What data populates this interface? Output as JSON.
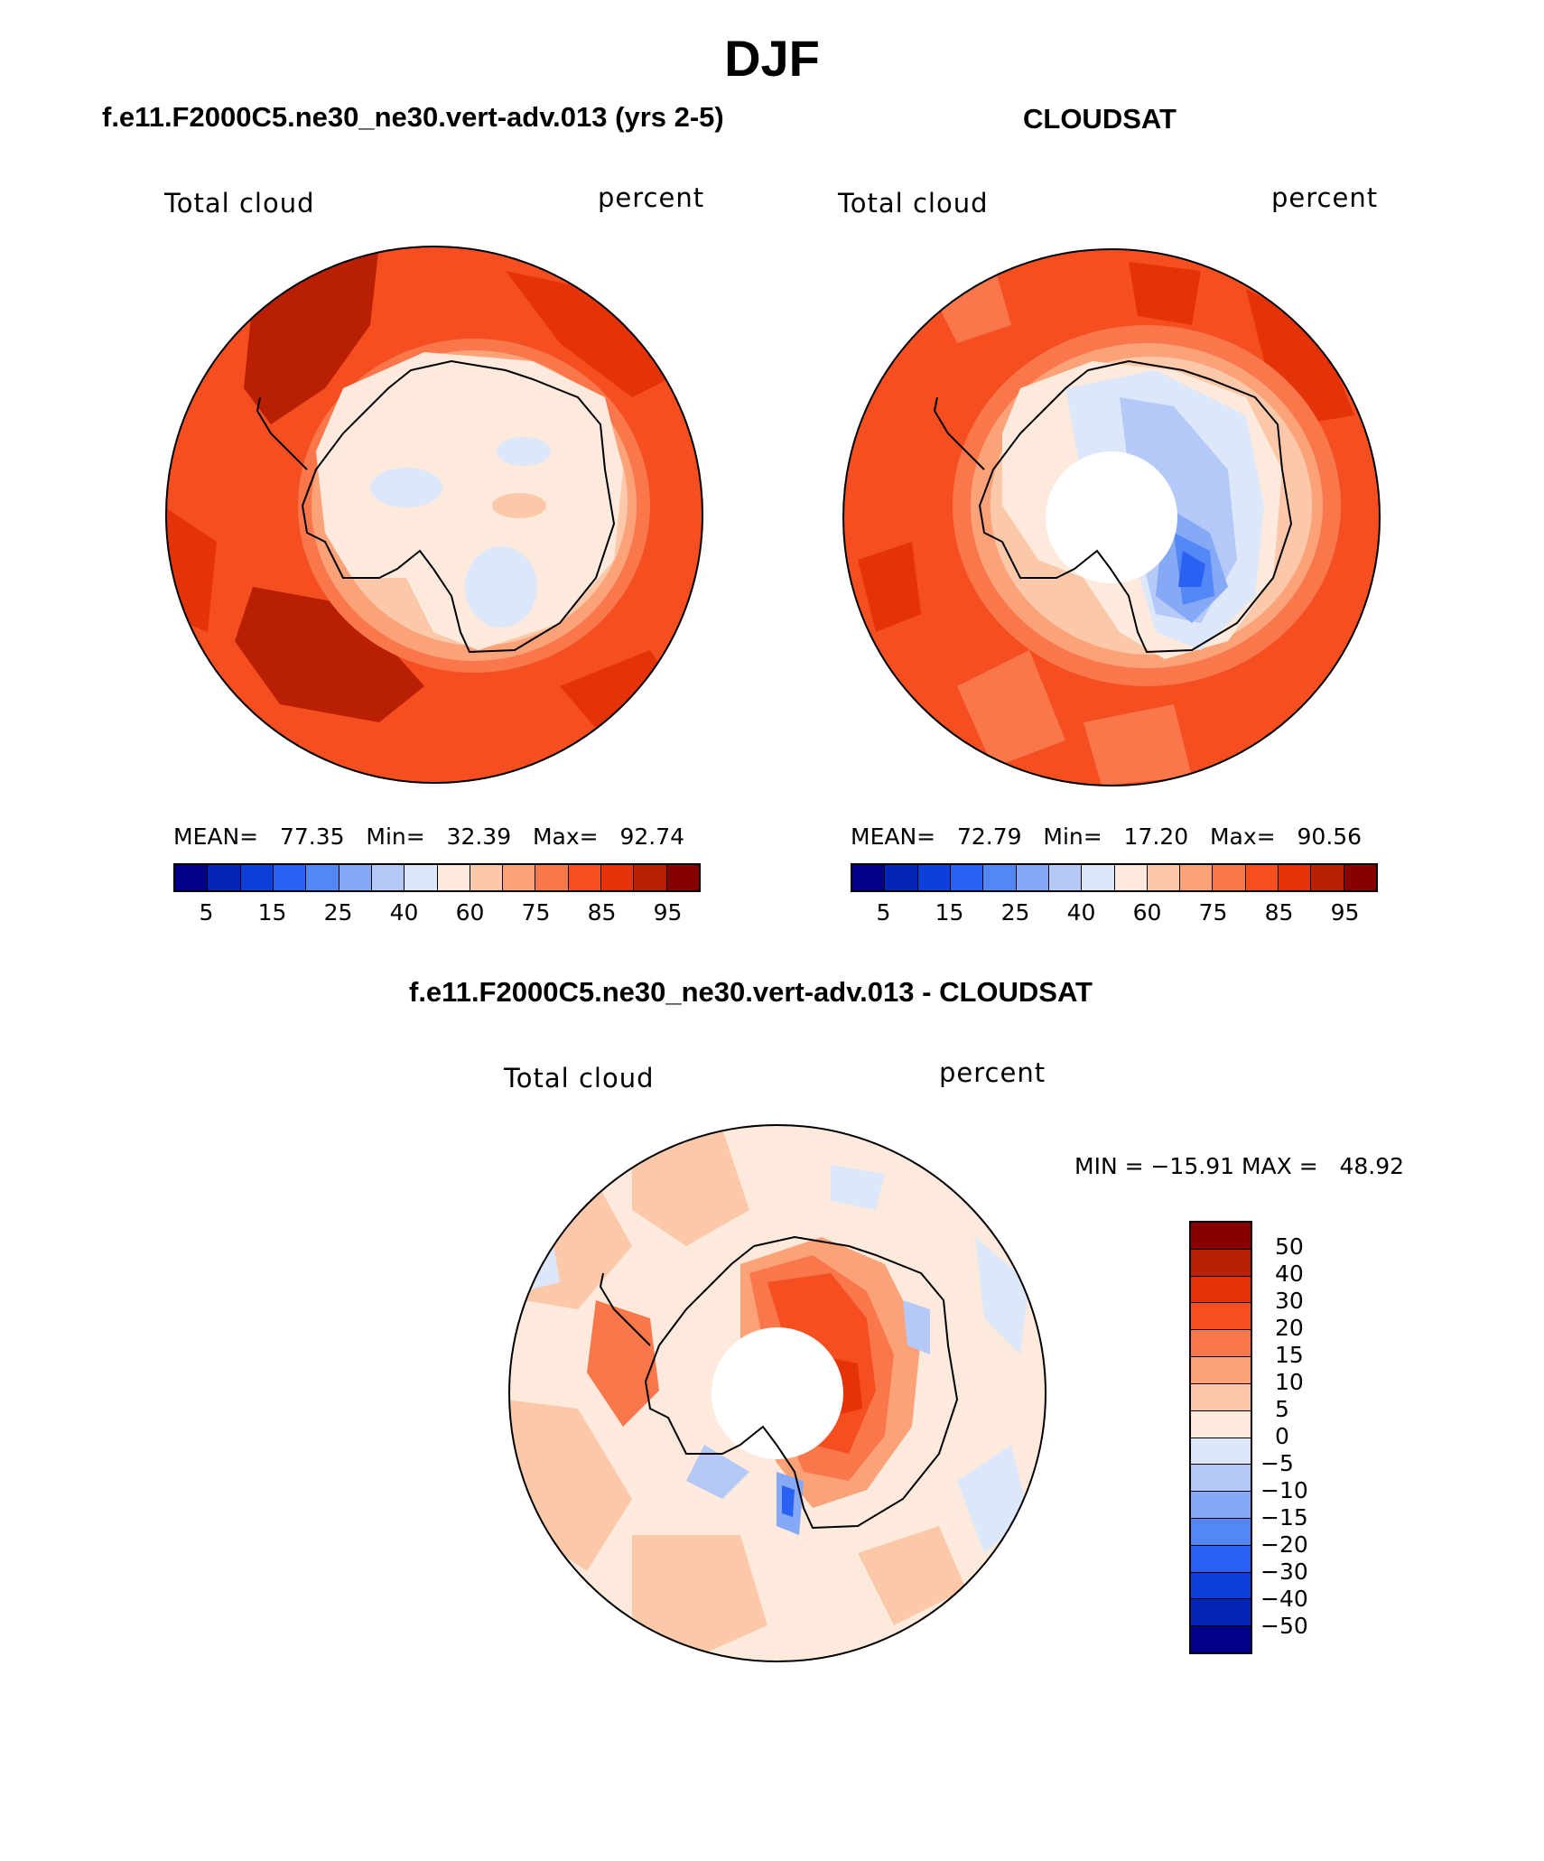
{
  "title": "DJF",
  "panels": {
    "model": {
      "heading": "f.e11.F2000C5.ne30_ne30.vert-adv.013 (yrs 2-5)",
      "variable": "Total cloud",
      "units": "percent",
      "mean_label": "MEAN=",
      "mean": "77.35",
      "min_label": "Min=",
      "min": "32.39",
      "max_label": "Max=",
      "max": "92.74"
    },
    "obs": {
      "heading": "CLOUDSAT",
      "variable": "Total cloud",
      "units": "percent",
      "mean_label": "MEAN=",
      "mean": "72.79",
      "min_label": "Min=",
      "min": "17.20",
      "max_label": "Max=",
      "max": "90.56"
    },
    "diff": {
      "heading": "f.e11.F2000C5.ne30_ne30.vert-adv.013 - CLOUDSAT",
      "variable": "Total cloud",
      "units": "percent",
      "minmax_text": "MIN = −15.91 MAX =   48.92"
    }
  },
  "colorbar_abs": {
    "ticks": [
      "5",
      "15",
      "25",
      "40",
      "60",
      "75",
      "85",
      "95"
    ],
    "colors": [
      "#02008a",
      "#0325b6",
      "#0f3fd9",
      "#2962f2",
      "#5387f5",
      "#86a9f6",
      "#b4c9f7",
      "#dce8f9",
      "#fdeadc",
      "#fbc9aa",
      "#fba279",
      "#f9774a",
      "#f54e20",
      "#e43309",
      "#b81f03",
      "#860000"
    ]
  },
  "colorbar_diff": {
    "ticks": [
      "50",
      "40",
      "30",
      "20",
      "15",
      "10",
      "5",
      "0",
      "−5",
      "−10",
      "−15",
      "−20",
      "−30",
      "−40",
      "−50"
    ],
    "colors": [
      "#860000",
      "#b81f03",
      "#e43309",
      "#f54e20",
      "#f9774a",
      "#fba279",
      "#fbc9aa",
      "#fdeadc",
      "#dce8f9",
      "#b4c9f7",
      "#86a9f6",
      "#5387f5",
      "#2962f2",
      "#0f3fd9",
      "#0325b6",
      "#02008a"
    ]
  }
}
